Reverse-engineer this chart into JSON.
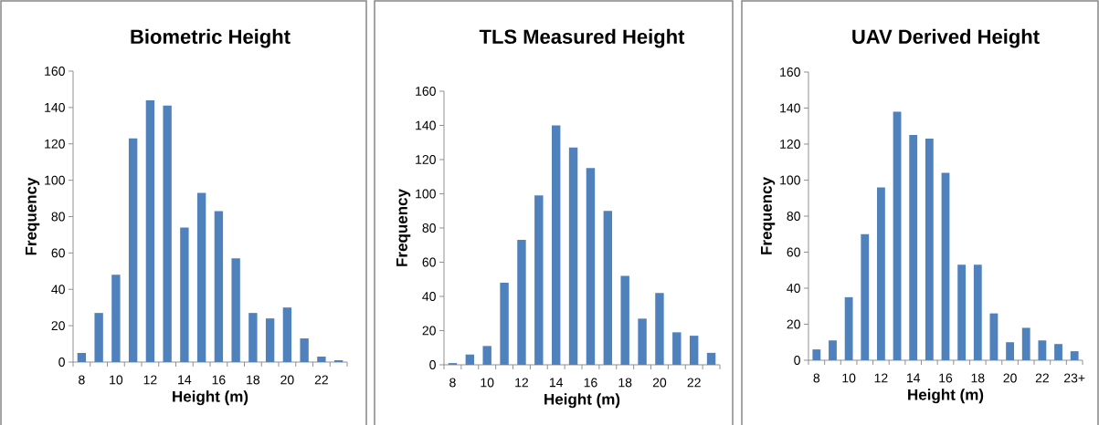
{
  "chart_data": [
    {
      "type": "bar",
      "title": "Biometric Height",
      "xlabel": "Height (m)",
      "ylabel": "Frequency",
      "color": "#4f81bd",
      "categories": [
        "8",
        null,
        "10",
        null,
        "12",
        null,
        "14",
        null,
        "16",
        null,
        "18",
        null,
        "20",
        null,
        "22",
        null
      ],
      "values": [
        5,
        27,
        48,
        123,
        144,
        141,
        74,
        93,
        83,
        57,
        27,
        24,
        30,
        13,
        3,
        1
      ],
      "ylim": [
        0,
        160
      ],
      "yticks": [
        0,
        20,
        40,
        60,
        80,
        100,
        120,
        140,
        160
      ]
    },
    {
      "type": "bar",
      "title": "TLS Measured Height",
      "xlabel": "Height (m)",
      "ylabel": "Frequency",
      "color": "#4f81bd",
      "categories": [
        "8",
        null,
        "10",
        null,
        "12",
        null,
        "14",
        null,
        "16",
        null,
        "18",
        null,
        "20",
        null,
        "22",
        null
      ],
      "values": [
        1,
        6,
        11,
        48,
        73,
        99,
        140,
        127,
        115,
        90,
        52,
        27,
        42,
        19,
        17,
        7
      ],
      "ylim": [
        0,
        160
      ],
      "yticks": [
        0,
        20,
        40,
        60,
        80,
        100,
        120,
        140,
        160
      ]
    },
    {
      "type": "bar",
      "title": "UAV Derived Height",
      "xlabel": "Height (m)",
      "ylabel": "Frequency",
      "color": "#4f81bd",
      "categories": [
        "8",
        null,
        "10",
        null,
        "12",
        null,
        "14",
        null,
        "16",
        null,
        "18",
        null,
        "20",
        null,
        "22",
        null,
        "23+"
      ],
      "values": [
        6,
        11,
        35,
        70,
        96,
        138,
        125,
        123,
        104,
        53,
        53,
        26,
        10,
        18,
        11,
        9,
        5
      ],
      "ylim": [
        0,
        160
      ],
      "yticks": [
        0,
        20,
        40,
        60,
        80,
        100,
        120,
        140,
        160
      ]
    }
  ]
}
